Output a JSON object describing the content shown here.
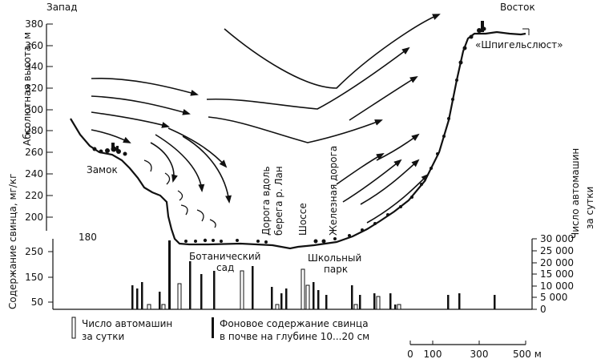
{
  "direction_labels": {
    "west": "Запад",
    "east": "Восток"
  },
  "left_axis_title": "Абсолютная высота, м",
  "lead_axis_title": "Содержание свинца, мг/кг",
  "right_axis_title_line1": "Число автомашин",
  "right_axis_title_line2": "за сутки",
  "altitude_ticks": [
    "380",
    "360",
    "340",
    "320",
    "300",
    "280",
    "260",
    "240",
    "220",
    "200",
    "180"
  ],
  "lead_ticks": [
    "250",
    "150",
    "50"
  ],
  "traffic_ticks": [
    "30 000",
    "25 000",
    "20 000",
    "15 000",
    "10 000",
    "5 000",
    "0"
  ],
  "place_labels": {
    "castle": "Замок",
    "spiegelslust": "«Шпигельслюст»",
    "botanical_1": "Ботанический",
    "botanical_2": "сад",
    "school_1": "Школьный",
    "school_2": "парк",
    "lahn_road_1": "Дорога вдоль",
    "lahn_road_2": "берега р. Лан",
    "highway": "Шоссе",
    "railway": "Железная дорога"
  },
  "legend": {
    "cars_1": "Число автомашин",
    "cars_2": "за сутки",
    "lead_1": "Фоновое содержание свинца",
    "lead_2": "в почве на глубине 10...20 см"
  },
  "scale_ticks": [
    "0",
    "100",
    "300",
    "500 м"
  ],
  "colors": {
    "ink": "#111111",
    "paper": "#ffffff"
  }
}
